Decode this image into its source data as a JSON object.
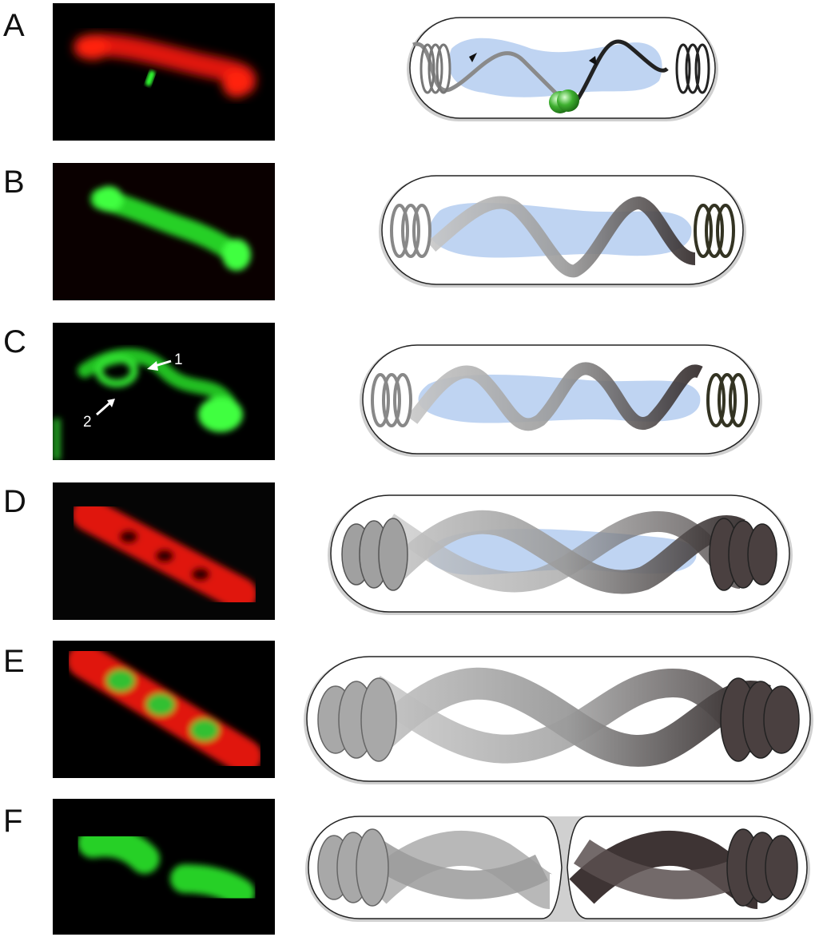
{
  "panels": [
    {
      "letter": "A",
      "color_channels": [
        "red",
        "green"
      ]
    },
    {
      "letter": "B",
      "color_channels": [
        "green"
      ]
    },
    {
      "letter": "C",
      "color_channels": [
        "green"
      ],
      "annotations": [
        "1",
        "2"
      ]
    },
    {
      "letter": "D",
      "color_channels": [
        "red"
      ]
    },
    {
      "letter": "E",
      "color_channels": [
        "red",
        "green"
      ]
    },
    {
      "letter": "F",
      "color_channels": [
        "green"
      ]
    }
  ],
  "colors": {
    "red": "#ff2010",
    "green": "#20e020",
    "nucleoid_blue": "#a9c6ee",
    "ribbon_light": "#b8b8b8",
    "ribbon_dark": "#3a3030",
    "cell_outline": "#222222",
    "cell_shadow": "#c8c8c8"
  }
}
